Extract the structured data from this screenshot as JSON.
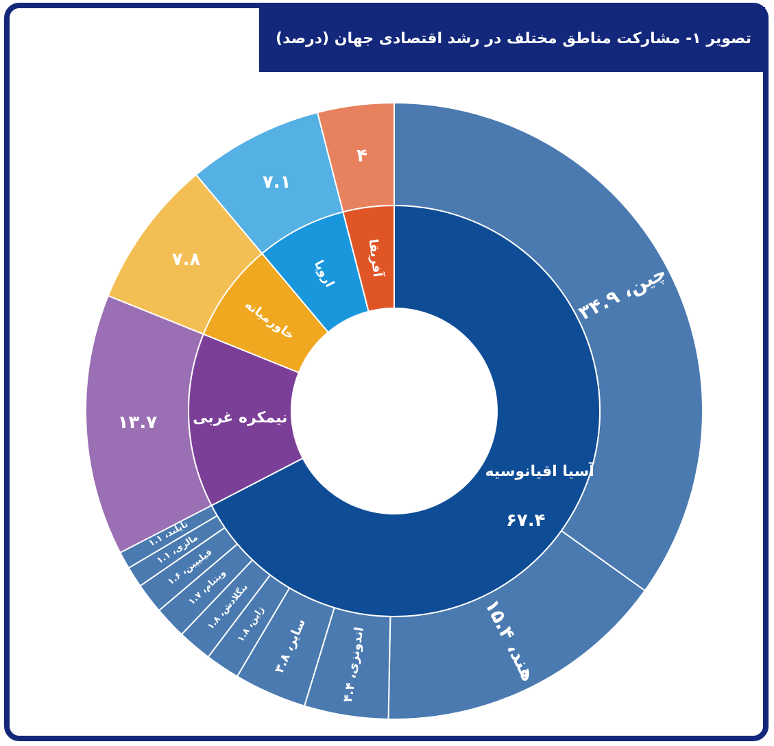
{
  "chart_data": {
    "type": "sunburst",
    "title": "تصویر ۱- مشارکت مناطق مختلف در رشد اقتصادی جهان (درصد)",
    "regions": [
      {
        "name": "آسیا اقیانوسیه",
        "value": 67.4,
        "value_label": "۶۷.۴",
        "color": "#0f4c96",
        "outer_color": "#4a7ab0",
        "children": [
          {
            "label": "چین، ۳۴.۹",
            "value": 34.9
          },
          {
            "label": "هند، ۱۵.۴",
            "value": 15.4
          },
          {
            "label": "اندونزی، ۴.۴",
            "value": 4.4
          },
          {
            "label": "سایر، ۳.۸",
            "value": 3.8
          },
          {
            "label": "ژاپن، ۱.۸",
            "value": 1.8
          },
          {
            "label": "بنگلادش، ۱.۸",
            "value": 1.8
          },
          {
            "label": "ویتنام، ۱.۷",
            "value": 1.7
          },
          {
            "label": "فیلیپین، ۱.۶",
            "value": 1.6
          },
          {
            "label": "مالزی، ۱.۱",
            "value": 1.1
          },
          {
            "label": "تایلند، ۱.۱",
            "value": 1.1
          }
        ]
      },
      {
        "name": "نیمکره غربی",
        "value": 13.7,
        "value_label": "۱۳.۷",
        "color": "#7b3f98",
        "outer_color": "#9b6fb3"
      },
      {
        "name": "خاورمیانه",
        "value": 7.8,
        "value_label": "۷.۸",
        "color": "#f0a820",
        "outer_color": "#f3bf55"
      },
      {
        "name": "اروپا",
        "value": 7.1,
        "value_label": "۷.۱",
        "color": "#1a96dc",
        "outer_color": "#55b0e4"
      },
      {
        "name": "آفریقا",
        "value": 4,
        "value_label": "۴",
        "color": "#e05526",
        "outer_color": "#e8825e"
      }
    ]
  }
}
